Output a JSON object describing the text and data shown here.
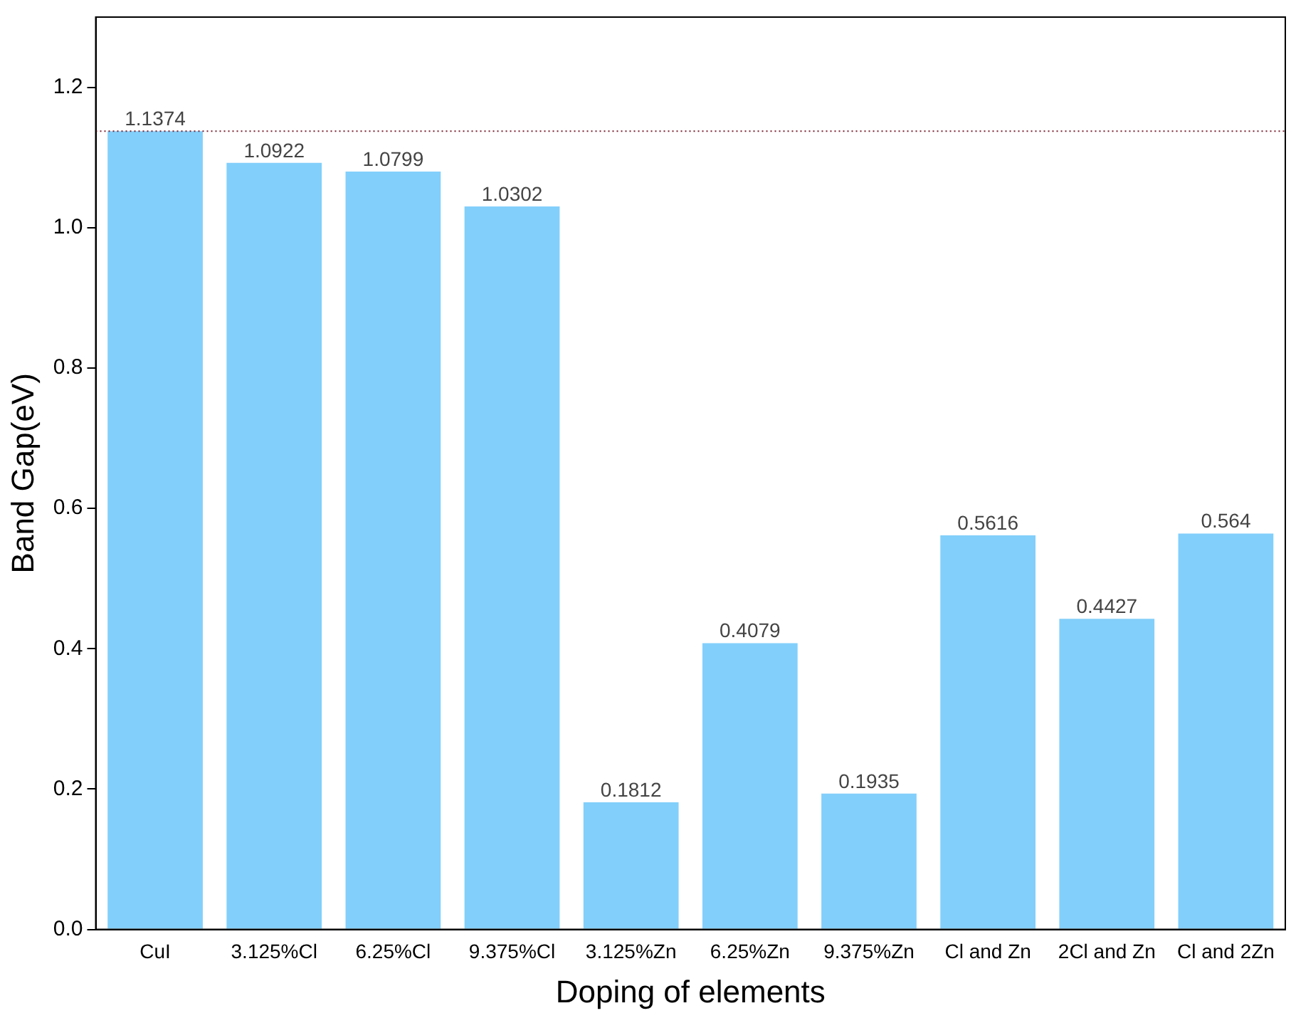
{
  "chart_data": {
    "type": "bar",
    "xlabel": "Doping of elements",
    "ylabel": "Band Gap(eV)",
    "categories": [
      "CuI",
      "3.125%Cl",
      "6.25%Cl",
      "9.375%Cl",
      "3.125%Zn",
      "6.25%Zn",
      "9.375%Zn",
      "Cl and Zn",
      "2Cl and Zn",
      "Cl and 2Zn"
    ],
    "values": [
      1.1374,
      1.0922,
      1.0799,
      1.0302,
      0.1812,
      0.4079,
      0.1935,
      0.5616,
      0.4427,
      0.564
    ],
    "color": "#82cffb",
    "ylim": [
      0,
      1.3
    ],
    "yticks": [
      {
        "value": 0,
        "label": "0.0"
      },
      0.2,
      0.4,
      0.6,
      0.8,
      {
        "value": 1,
        "label": "1.0"
      },
      1.2
    ],
    "ref_lines": [
      {
        "axis": "y",
        "value": 1.1374,
        "color": "#7a2030",
        "line_style": "dotted"
      }
    ],
    "data_labels": true,
    "grid": false,
    "legend": false
  }
}
